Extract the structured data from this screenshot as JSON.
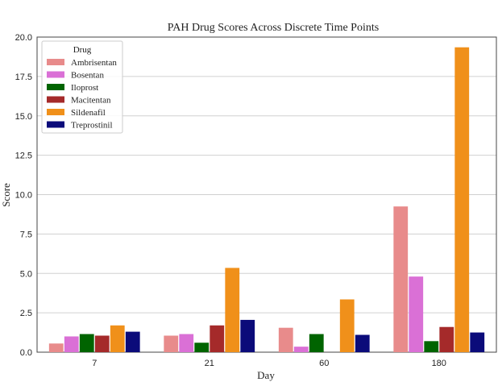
{
  "chart_data": {
    "type": "bar",
    "title": "PAH Drug Scores Across Discrete Time Points",
    "xlabel": "Day",
    "ylabel": "Score",
    "categories": [
      "7",
      "21",
      "60",
      "180"
    ],
    "ylim": [
      0,
      20
    ],
    "yticks": [
      "0.0",
      "2.5",
      "5.0",
      "7.5",
      "10.0",
      "12.5",
      "15.0",
      "17.5",
      "20.0"
    ],
    "grid": "horizontal",
    "legend_title": "Drug",
    "legend_position": "top-left",
    "series": [
      {
        "name": "Ambrisentan",
        "color": "#e88b8b",
        "values": [
          0.55,
          1.05,
          1.55,
          9.25
        ]
      },
      {
        "name": "Bosentan",
        "color": "#da70d6",
        "values": [
          1.0,
          1.15,
          0.35,
          4.8
        ]
      },
      {
        "name": "Iloprost",
        "color": "#006400",
        "values": [
          1.15,
          0.6,
          1.15,
          0.7
        ]
      },
      {
        "name": "Macitentan",
        "color": "#a52a2a",
        "values": [
          1.05,
          1.7,
          0,
          1.6
        ]
      },
      {
        "name": "Sildenafil",
        "color": "#f0901a",
        "values": [
          1.7,
          5.35,
          3.35,
          19.35
        ]
      },
      {
        "name": "Treprostinil",
        "color": "#0b0b7a",
        "values": [
          1.3,
          2.05,
          1.1,
          1.25
        ]
      }
    ]
  }
}
